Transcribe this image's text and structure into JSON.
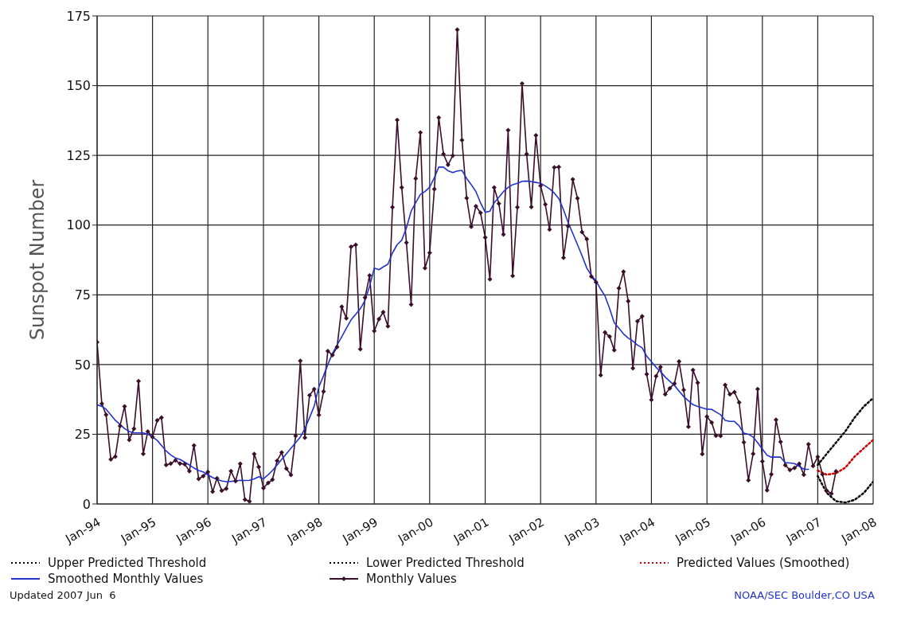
{
  "chart_data": {
    "type": "line",
    "ylabel": "Sunspot Number",
    "x": [
      "1994-01",
      "1994-02",
      "1994-03",
      "1994-04",
      "1994-05",
      "1994-06",
      "1994-07",
      "1994-08",
      "1994-09",
      "1994-10",
      "1994-11",
      "1994-12",
      "1995-01",
      "1995-02",
      "1995-03",
      "1995-04",
      "1995-05",
      "1995-06",
      "1995-07",
      "1995-08",
      "1995-09",
      "1995-10",
      "1995-11",
      "1995-12",
      "1996-01",
      "1996-02",
      "1996-03",
      "1996-04",
      "1996-05",
      "1996-06",
      "1996-07",
      "1996-08",
      "1996-09",
      "1996-10",
      "1996-11",
      "1996-12",
      "1997-01",
      "1997-02",
      "1997-03",
      "1997-04",
      "1997-05",
      "1997-06",
      "1997-07",
      "1997-08",
      "1997-09",
      "1997-10",
      "1997-11",
      "1997-12",
      "1998-01",
      "1998-02",
      "1998-03",
      "1998-04",
      "1998-05",
      "1998-06",
      "1998-07",
      "1998-08",
      "1998-09",
      "1998-10",
      "1998-11",
      "1998-12",
      "1999-01",
      "1999-02",
      "1999-03",
      "1999-04",
      "1999-05",
      "1999-06",
      "1999-07",
      "1999-08",
      "1999-09",
      "1999-10",
      "1999-11",
      "1999-12",
      "2000-01",
      "2000-02",
      "2000-03",
      "2000-04",
      "2000-05",
      "2000-06",
      "2000-07",
      "2000-08",
      "2000-09",
      "2000-10",
      "2000-11",
      "2000-12",
      "2001-01",
      "2001-02",
      "2001-03",
      "2001-04",
      "2001-05",
      "2001-06",
      "2001-07",
      "2001-08",
      "2001-09",
      "2001-10",
      "2001-11",
      "2001-12",
      "2002-01",
      "2002-02",
      "2002-03",
      "2002-04",
      "2002-05",
      "2002-06",
      "2002-07",
      "2002-08",
      "2002-09",
      "2002-10",
      "2002-11",
      "2002-12",
      "2003-01",
      "2003-02",
      "2003-03",
      "2003-04",
      "2003-05",
      "2003-06",
      "2003-07",
      "2003-08",
      "2003-09",
      "2003-10",
      "2003-11",
      "2003-12",
      "2004-01",
      "2004-02",
      "2004-03",
      "2004-04",
      "2004-05",
      "2004-06",
      "2004-07",
      "2004-08",
      "2004-09",
      "2004-10",
      "2004-11",
      "2004-12",
      "2005-01",
      "2005-02",
      "2005-03",
      "2005-04",
      "2005-05",
      "2005-06",
      "2005-07",
      "2005-08",
      "2005-09",
      "2005-10",
      "2005-11",
      "2005-12",
      "2006-01",
      "2006-02",
      "2006-03",
      "2006-04",
      "2006-05",
      "2006-06",
      "2006-07",
      "2006-08",
      "2006-09",
      "2006-10",
      "2006-11",
      "2006-12",
      "2007-01",
      "2007-02",
      "2007-03",
      "2007-04",
      "2007-05"
    ],
    "series": [
      {
        "name": "Upper Predicted Threshold",
        "color": "#000000",
        "line_style": "dotted",
        "marker": "none",
        "x": [
          "2007-01",
          "2007-03",
          "2007-05",
          "2007-07",
          "2007-09",
          "2007-11",
          "2008-01"
        ],
        "values": [
          14,
          18,
          22,
          26,
          31,
          35,
          38
        ]
      },
      {
        "name": "Lower Predicted Threshold",
        "color": "#000000",
        "line_style": "dotted",
        "marker": "none",
        "x": [
          "2007-01",
          "2007-03",
          "2007-05",
          "2007-07",
          "2007-09",
          "2007-11",
          "2008-01"
        ],
        "values": [
          10,
          4,
          1,
          0.5,
          1.5,
          4,
          8
        ]
      },
      {
        "name": "Predicted Values (Smoothed)",
        "color": "#cc0000",
        "line_style": "dotted",
        "marker": "none",
        "x": [
          "2007-01",
          "2007-03",
          "2007-05",
          "2007-07",
          "2007-09",
          "2007-11",
          "2008-01"
        ],
        "values": [
          12,
          10.5,
          11,
          13,
          17,
          20,
          23
        ]
      },
      {
        "name": "Smoothed Monthly Values",
        "color": "#2233cc",
        "line_style": "solid",
        "marker": "none",
        "values": [
          35.6,
          35,
          34,
          32,
          30,
          28.5,
          27,
          26,
          25.5,
          25.5,
          25.5,
          25,
          24,
          22.8,
          21,
          19,
          17.6,
          16.5,
          16,
          15,
          14,
          12.9,
          12,
          11.5,
          10.4,
          9.5,
          8.8,
          8.3,
          8,
          8.1,
          8.3,
          8.5,
          8.4,
          8.5,
          9,
          9.8,
          9,
          10.5,
          12,
          14,
          16,
          18,
          20,
          22,
          24,
          27,
          31,
          35,
          42,
          46,
          50,
          54,
          57,
          60,
          63,
          66,
          68,
          70,
          73,
          78,
          84.6,
          84,
          85,
          86,
          90,
          93,
          94.6,
          99,
          105,
          108,
          111,
          112,
          113.6,
          117,
          120.8,
          120.8,
          119.5,
          118.8,
          119.4,
          119.6,
          116.7,
          114.5,
          112,
          108,
          104.6,
          105,
          108,
          110,
          112,
          113.5,
          114.5,
          115,
          115.7,
          115.8,
          115.6,
          115.3,
          115,
          114,
          113,
          111.5,
          109.5,
          105.5,
          101,
          97,
          93,
          89,
          84.6,
          82,
          80,
          77,
          74.6,
          70,
          65,
          63,
          61,
          59.5,
          58.4,
          57,
          56,
          53,
          51,
          49,
          47.5,
          45.5,
          44,
          42.5,
          40.5,
          38.5,
          37,
          35.6,
          35,
          34.5,
          34,
          33.9,
          33,
          32,
          30,
          29.6,
          29.6,
          28,
          25.4,
          25,
          24,
          22,
          19.7,
          17.5,
          16.8,
          16.8,
          16.8,
          14.8,
          14.7,
          14.5,
          13.5,
          12.5,
          12.4,
          null,
          null,
          null,
          null,
          null,
          null
        ]
      },
      {
        "name": "Monthly Values",
        "color": "#3a0f2a",
        "line_style": "solid",
        "marker": "diamond",
        "values": [
          58,
          36,
          32,
          16,
          17,
          28,
          35,
          23,
          27,
          44,
          18,
          26,
          24,
          30,
          31,
          14,
          14.5,
          15.6,
          14.5,
          14.3,
          11.8,
          21,
          9,
          10,
          11.5,
          4.4,
          9.2,
          4.8,
          5.5,
          11.8,
          8.2,
          14.4,
          1.6,
          0.9,
          17.9,
          13.3,
          5.7,
          7.6,
          8.7,
          15.5,
          18.5,
          12.7,
          10.4,
          24.4,
          51.3,
          23.8,
          39,
          41.2,
          31.9,
          40.3,
          54.8,
          53.4,
          56.3,
          70.7,
          66.6,
          92.2,
          92.9,
          55.5,
          74,
          81.9,
          62,
          66.3,
          68.8,
          63.7,
          106.4,
          137.7,
          113.5,
          93.7,
          71.5,
          116.7,
          133.2,
          84.6,
          90.1,
          112.9,
          138.5,
          125.5,
          121.6,
          124.9,
          170.1,
          130.5,
          109.7,
          99.4,
          106.8,
          104.4,
          95.6,
          80.6,
          113.5,
          107.7,
          96.6,
          134,
          81.8,
          106.4,
          150.7,
          125.5,
          106.5,
          132.2,
          114.1,
          107.4,
          98.4,
          120.7,
          120.8,
          88.3,
          99.6,
          116.4,
          109.6,
          97.5,
          95,
          81.6,
          79.5,
          46.2,
          61.5,
          60,
          55.2,
          77.4,
          83.3,
          72.7,
          48.7,
          65.5,
          67.3,
          46.5,
          37.3,
          45.8,
          49.1,
          39.3,
          41.5,
          43.2,
          51.1,
          40.9,
          27.7,
          48,
          43.5,
          17.9,
          31.3,
          29.2,
          24.5,
          24.4,
          42.7,
          39.3,
          40.1,
          36.4,
          22.1,
          8.5,
          18,
          41.2,
          15.3,
          4.9,
          10.6,
          30.2,
          22.3,
          13.9,
          12.2,
          12.9,
          14.4,
          10.5,
          21.4,
          13.6,
          16.9,
          10.6,
          4.8,
          3.7,
          11.7
        ]
      }
    ],
    "xlim": [
      "1994-01",
      "2008-01"
    ],
    "xticks": [
      {
        "value": "1994-01",
        "label": "Jan-94"
      },
      {
        "value": "1995-01",
        "label": "Jan-95"
      },
      {
        "value": "1996-01",
        "label": "Jan-96"
      },
      {
        "value": "1997-01",
        "label": "Jan-97"
      },
      {
        "value": "1998-01",
        "label": "Jan-98"
      },
      {
        "value": "1999-01",
        "label": "Jan-99"
      },
      {
        "value": "2000-01",
        "label": "Jan-00"
      },
      {
        "value": "2001-01",
        "label": "Jan-01"
      },
      {
        "value": "2002-01",
        "label": "Jan-02"
      },
      {
        "value": "2003-01",
        "label": "Jan-03"
      },
      {
        "value": "2004-01",
        "label": "Jan-04"
      },
      {
        "value": "2005-01",
        "label": "Jan-05"
      },
      {
        "value": "2006-01",
        "label": "Jan-06"
      },
      {
        "value": "2007-01",
        "label": "Jan-07"
      },
      {
        "value": "2008-01",
        "label": "Jan-08"
      }
    ],
    "ylim": [
      0,
      175
    ],
    "yticks": [
      0,
      25,
      50,
      75,
      100,
      125,
      150,
      175
    ],
    "grid": true,
    "legend": "bottom",
    "annotations": [
      "Updated 2007 Jun  6",
      "NOAA/SEC Boulder,CO USA"
    ]
  }
}
